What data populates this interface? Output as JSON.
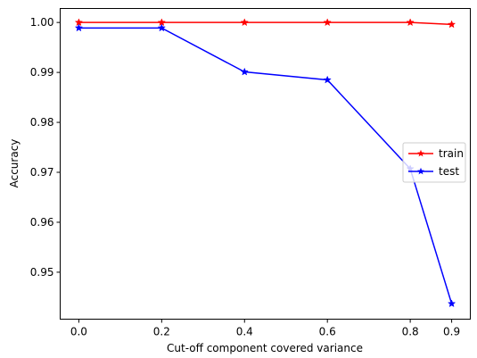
{
  "chart_data": {
    "type": "line",
    "title": "",
    "xlabel": "Cut-off component covered variance",
    "ylabel": "Accuracy",
    "x": [
      0.0,
      0.2,
      0.4,
      0.6,
      0.8,
      0.9
    ],
    "xticks": [
      0.0,
      0.2,
      0.4,
      0.6,
      0.8,
      0.9
    ],
    "xtick_labels": [
      "0.0",
      "0.2",
      "0.4",
      "0.6",
      "0.8",
      "0.9"
    ],
    "yticks": [
      0.95,
      0.96,
      0.97,
      0.98,
      0.99,
      1.0
    ],
    "ytick_labels": [
      "0.95",
      "0.96",
      "0.97",
      "0.98",
      "0.99",
      "1.00"
    ],
    "xlim": [
      -0.045,
      0.945
    ],
    "ylim": [
      0.9406,
      1.0028
    ],
    "grid": false,
    "legend_position": "center-right",
    "series": [
      {
        "name": "train",
        "color": "#ff0000",
        "marker": "star",
        "values": [
          1.0,
          1.0,
          1.0,
          1.0,
          1.0,
          0.9996
        ]
      },
      {
        "name": "test",
        "color": "#0000ff",
        "marker": "star",
        "values": [
          0.9989,
          0.9989,
          0.9901,
          0.9885,
          0.9707,
          0.9437
        ]
      }
    ]
  }
}
